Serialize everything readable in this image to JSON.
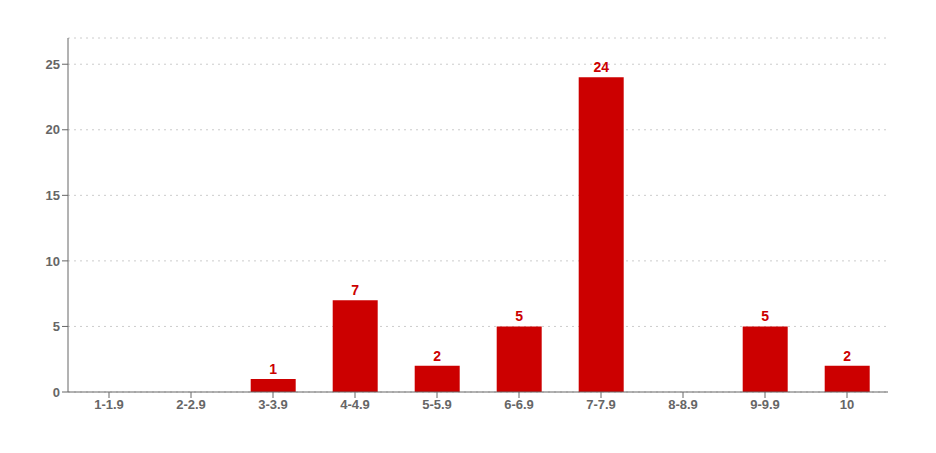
{
  "chart_data": {
    "type": "bar",
    "categories": [
      "1-1.9",
      "2-2.9",
      "3-3.9",
      "4-4.9",
      "5-5.9",
      "6-6.9",
      "7-7.9",
      "8-8.9",
      "9-9.9",
      "10"
    ],
    "values": [
      0,
      0,
      1,
      7,
      2,
      5,
      24,
      0,
      5,
      2
    ],
    "color": "#cc0000",
    "ylim": [
      0,
      27
    ],
    "yticks": [
      0,
      5,
      10,
      15,
      20,
      25
    ],
    "grid": true,
    "data_labels": true
  }
}
